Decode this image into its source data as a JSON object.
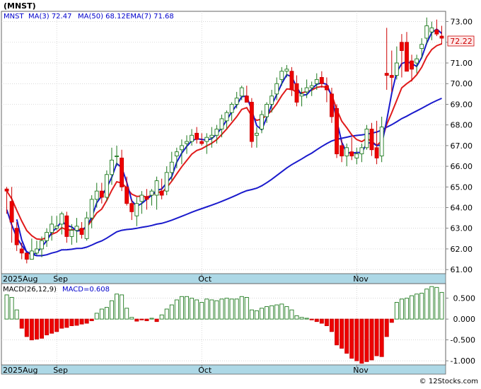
{
  "chart_data": [
    {
      "type": "candlestick",
      "ticker_label": "(MNST)",
      "legend": [
        {
          "name": "MNST",
          "value": "",
          "color": "#0000cc"
        },
        {
          "name": "MA(3)",
          "value": "72.47",
          "color": "#0000cc"
        },
        {
          "name": "MA(50)",
          "value": "68.12",
          "color": "#0000cc"
        },
        {
          "name": "EMA(7)",
          "value": "71.68",
          "color": "#0000cc"
        }
      ],
      "last_price_label": "72.22",
      "ylim": [
        60.8,
        73.5
      ],
      "y_ticks": [
        "73.00",
        "72.00",
        "71.00",
        "70.00",
        "69.00",
        "68.00",
        "67.00",
        "66.00",
        "65.00",
        "64.00",
        "63.00",
        "62.00",
        "61.00"
      ],
      "x_ticks": [
        {
          "label": "2025Aug",
          "index": -0.5
        },
        {
          "label": "Sep",
          "index": 10
        },
        {
          "label": "Oct",
          "index": 39
        },
        {
          "label": "Nov",
          "index": 70
        }
      ],
      "candles": [
        [
          64.9,
          65.0,
          63.7,
          64.8
        ],
        [
          64.3,
          65.0,
          62.3,
          63.3
        ],
        [
          63.0,
          63.3,
          61.9,
          62.2
        ],
        [
          62.0,
          62.3,
          61.5,
          61.8
        ],
        [
          61.8,
          61.8,
          61.3,
          61.5
        ],
        [
          61.5,
          62.5,
          61.5,
          61.9
        ],
        [
          61.8,
          62.4,
          61.7,
          62.0
        ],
        [
          62.0,
          62.6,
          61.6,
          62.4
        ],
        [
          62.4,
          63.0,
          62.1,
          62.8
        ],
        [
          62.8,
          63.6,
          62.4,
          63.2
        ],
        [
          63.0,
          63.6,
          62.9,
          63.1
        ],
        [
          63.2,
          63.8,
          62.7,
          63.7
        ],
        [
          63.6,
          63.8,
          62.3,
          62.6
        ],
        [
          62.6,
          63.2,
          62.2,
          62.9
        ],
        [
          62.9,
          63.5,
          62.3,
          63.1
        ],
        [
          63.0,
          63.3,
          62.5,
          62.7
        ],
        [
          62.5,
          63.8,
          62.4,
          63.5
        ],
        [
          63.5,
          64.6,
          63.0,
          64.4
        ],
        [
          64.4,
          65.2,
          64.0,
          64.8
        ],
        [
          64.8,
          65.2,
          64.2,
          64.5
        ],
        [
          64.5,
          65.8,
          64.3,
          65.6
        ],
        [
          65.6,
          66.9,
          65.1,
          66.3
        ],
        [
          66.5,
          67.0,
          66.0,
          66.5
        ],
        [
          66.4,
          66.8,
          64.8,
          65.0
        ],
        [
          65.0,
          65.5,
          64.1,
          64.2
        ],
        [
          64.2,
          64.4,
          63.4,
          63.8
        ],
        [
          63.6,
          64.5,
          63.1,
          64.2
        ],
        [
          64.3,
          64.8,
          63.7,
          64.6
        ],
        [
          64.5,
          64.9,
          63.9,
          64.4
        ],
        [
          64.6,
          64.9,
          64.1,
          64.8
        ],
        [
          64.6,
          65.5,
          63.9,
          65.3
        ],
        [
          64.8,
          65.4,
          64.4,
          64.6
        ],
        [
          64.8,
          66.0,
          64.6,
          65.7
        ],
        [
          65.7,
          66.7,
          65.3,
          66.2
        ],
        [
          66.5,
          66.9,
          65.9,
          66.7
        ],
        [
          66.8,
          67.3,
          66.1,
          67.0
        ],
        [
          67.1,
          67.5,
          66.6,
          67.2
        ],
        [
          67.2,
          67.8,
          67.0,
          67.5
        ],
        [
          67.6,
          67.9,
          67.1,
          67.3
        ],
        [
          67.2,
          67.6,
          67.0,
          67.1
        ],
        [
          67.2,
          67.6,
          66.6,
          67.4
        ],
        [
          67.4,
          67.9,
          66.9,
          67.5
        ],
        [
          67.5,
          68.0,
          67.1,
          67.8
        ],
        [
          67.8,
          68.5,
          67.4,
          68.3
        ],
        [
          68.2,
          68.7,
          67.8,
          68.6
        ],
        [
          68.6,
          69.1,
          68.2,
          69.0
        ],
        [
          69.0,
          69.6,
          68.8,
          69.3
        ],
        [
          69.4,
          69.9,
          69.2,
          69.8
        ],
        [
          69.4,
          69.9,
          69.1,
          69.1
        ],
        [
          69.1,
          69.3,
          66.9,
          67.2
        ],
        [
          67.5,
          67.9,
          66.9,
          67.6
        ],
        [
          67.8,
          68.7,
          67.6,
          68.5
        ],
        [
          68.4,
          69.1,
          68.1,
          69.0
        ],
        [
          69.0,
          69.7,
          68.6,
          69.4
        ],
        [
          69.5,
          70.3,
          69.2,
          70.0
        ],
        [
          70.2,
          70.8,
          69.9,
          70.6
        ],
        [
          70.6,
          70.9,
          70.3,
          70.7
        ],
        [
          70.6,
          70.8,
          69.4,
          69.7
        ],
        [
          70.0,
          70.4,
          68.9,
          69.1
        ],
        [
          69.4,
          69.8,
          68.9,
          69.5
        ],
        [
          69.6,
          70.2,
          69.3,
          69.8
        ],
        [
          69.8,
          70.1,
          69.4,
          69.9
        ],
        [
          70.0,
          70.5,
          69.7,
          70.2
        ],
        [
          70.3,
          70.6,
          69.8,
          70.0
        ],
        [
          69.9,
          70.3,
          69.1,
          69.7
        ],
        [
          69.5,
          69.8,
          68.1,
          68.4
        ],
        [
          68.8,
          69.0,
          66.4,
          66.6
        ],
        [
          67.0,
          67.3,
          66.2,
          66.5
        ],
        [
          66.5,
          67.1,
          66.0,
          66.9
        ],
        [
          66.7,
          67.4,
          66.3,
          66.5
        ],
        [
          66.4,
          66.9,
          66.1,
          66.6
        ],
        [
          66.6,
          67.1,
          66.2,
          66.9
        ],
        [
          66.9,
          68.0,
          66.8,
          67.8
        ],
        [
          67.8,
          68.1,
          66.5,
          66.8
        ],
        [
          66.9,
          68.2,
          66.1,
          66.4
        ],
        [
          66.5,
          68.4,
          66.2,
          67.9
        ],
        [
          70.5,
          72.7,
          69.7,
          70.4
        ],
        [
          70.4,
          71.6,
          69.6,
          70.3
        ],
        [
          70.4,
          71.8,
          70.2,
          71.0
        ],
        [
          72.0,
          72.4,
          70.3,
          71.6
        ],
        [
          72.0,
          72.5,
          70.7,
          70.6
        ],
        [
          71.1,
          71.4,
          70.1,
          70.7
        ],
        [
          71.0,
          71.4,
          70.5,
          71.2
        ],
        [
          71.7,
          72.2,
          71.2,
          71.9
        ],
        [
          72.2,
          73.2,
          71.9,
          72.8
        ],
        [
          72.5,
          73.0,
          72.1,
          72.7
        ],
        [
          72.6,
          73.1,
          72.3,
          72.4
        ],
        [
          72.3,
          72.8,
          71.9,
          72.2
        ]
      ],
      "macd": {
        "label": "MACD(26,12,9)",
        "value_label": "MACD=0.608",
        "ylim": [
          -1.1,
          0.85
        ],
        "y_ticks": [
          "0.500",
          "0.000",
          "-0.500",
          "-1.000"
        ],
        "bars": [
          0.58,
          0.52,
          0.22,
          -0.22,
          -0.42,
          -0.5,
          -0.48,
          -0.46,
          -0.38,
          -0.34,
          -0.3,
          -0.22,
          -0.2,
          -0.16,
          -0.15,
          -0.12,
          -0.1,
          -0.04,
          0.14,
          0.24,
          0.28,
          0.44,
          0.6,
          0.58,
          0.26,
          0.04,
          -0.05,
          -0.02,
          -0.04,
          0.02,
          -0.06,
          0.1,
          0.24,
          0.34,
          0.46,
          0.54,
          0.54,
          0.5,
          0.46,
          0.4,
          0.48,
          0.46,
          0.44,
          0.48,
          0.5,
          0.48,
          0.48,
          0.54,
          0.52,
          0.22,
          0.2,
          0.26,
          0.3,
          0.32,
          0.34,
          0.36,
          0.3,
          0.22,
          0.08,
          0.04,
          0.02,
          -0.02,
          -0.06,
          -0.1,
          -0.16,
          -0.3,
          -0.62,
          -0.7,
          -0.82,
          -0.94,
          -1.0,
          -1.06,
          -1.02,
          -0.98,
          -0.88,
          -0.9,
          -0.42,
          -0.08,
          0.4,
          0.48,
          0.5,
          0.56,
          0.6,
          0.62,
          0.72,
          0.78,
          0.76,
          0.64
        ]
      }
    }
  ],
  "footer": {
    "copyright": "© 12Stocks.com"
  }
}
